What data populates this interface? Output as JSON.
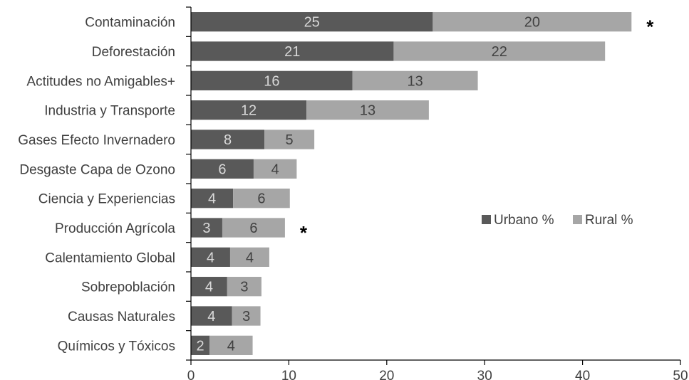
{
  "chart_data": {
    "type": "bar",
    "orientation": "horizontal",
    "stacked": true,
    "categories": [
      "Contaminación",
      "Deforestación",
      "Actitudes no Amigables+",
      "Industria y Transporte",
      "Gases Efecto Invernadero",
      "Desgaste Capa de Ozono",
      "Ciencia y Experiencias",
      "Producción Agrícola",
      "Calentamiento Global",
      "Sobrepoblación",
      "Causas Naturales",
      "Químicos y Tóxicos"
    ],
    "series": [
      {
        "name": "Urbano %",
        "color": "#595959",
        "values": [
          24.7,
          20.7,
          16.5,
          11.8,
          7.5,
          6.4,
          4.3,
          3.2,
          4.0,
          3.7,
          4.2,
          1.9
        ],
        "labels": [
          "25",
          "21",
          "16",
          "12",
          "8",
          "6",
          "4",
          "3",
          "4",
          "4",
          "4",
          "2"
        ]
      },
      {
        "name": "Rural %",
        "color": "#a6a6a6",
        "values": [
          20.3,
          21.6,
          12.8,
          12.5,
          5.1,
          4.4,
          5.8,
          6.4,
          4.0,
          3.5,
          2.9,
          4.4
        ],
        "labels": [
          "20",
          "22",
          "13",
          "13",
          "5",
          "4",
          "6",
          "6",
          "4",
          "3",
          "3",
          "4"
        ]
      }
    ],
    "significance": [
      {
        "category": "Contaminación",
        "mark": "*"
      },
      {
        "category": "Producción Agrícola",
        "mark": "*"
      }
    ],
    "xlim": [
      0,
      50
    ],
    "xticks": [
      "0",
      "10",
      "20",
      "30",
      "40",
      "50"
    ],
    "grid": false,
    "legend_position": "right-middle",
    "title": "",
    "xlabel": "",
    "ylabel": ""
  }
}
